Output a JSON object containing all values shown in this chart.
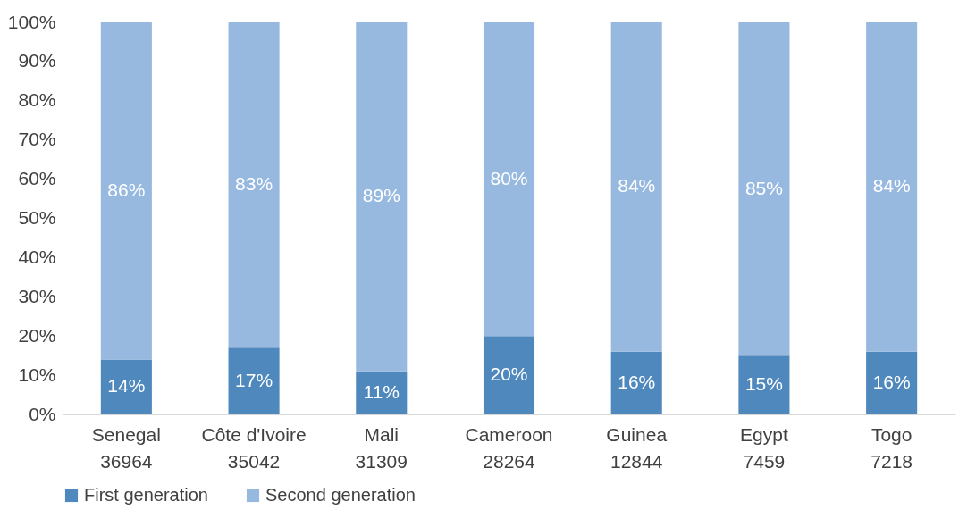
{
  "chart_data": {
    "type": "bar",
    "stacked": true,
    "categories": [
      "Senegal\n36964",
      "Côte d'Ivoire\n35042",
      "Mali\n31309",
      "Cameroon\n28264",
      "Guinea\n12844",
      "Egypt\n7459",
      "Togo\n7218"
    ],
    "series": [
      {
        "name": "First generation",
        "color": "#4f88bd",
        "values": [
          14,
          17,
          11,
          20,
          16,
          15,
          16
        ],
        "value_labels": [
          "14%",
          "17%",
          "11%",
          "20%",
          "16%",
          "15%",
          "16%"
        ]
      },
      {
        "name": "Second generation",
        "color": "#97b9e0",
        "values": [
          86,
          83,
          89,
          80,
          84,
          85,
          84
        ],
        "value_labels": [
          "86%",
          "83%",
          "89%",
          "80%",
          "84%",
          "85%",
          "84%"
        ]
      }
    ],
    "ylim": [
      0,
      100
    ],
    "yticks": [
      {
        "value": 0,
        "label": "0%"
      },
      {
        "value": 10,
        "label": "10%"
      },
      {
        "value": 20,
        "label": "20%"
      },
      {
        "value": 30,
        "label": "30%"
      },
      {
        "value": 40,
        "label": "40%"
      },
      {
        "value": 50,
        "label": "50%"
      },
      {
        "value": 60,
        "label": "60%"
      },
      {
        "value": 70,
        "label": "70%"
      },
      {
        "value": 80,
        "label": "80%"
      },
      {
        "value": 90,
        "label": "90%"
      },
      {
        "value": 100,
        "label": "100%"
      }
    ],
    "legend": "bottom",
    "grid": false
  }
}
